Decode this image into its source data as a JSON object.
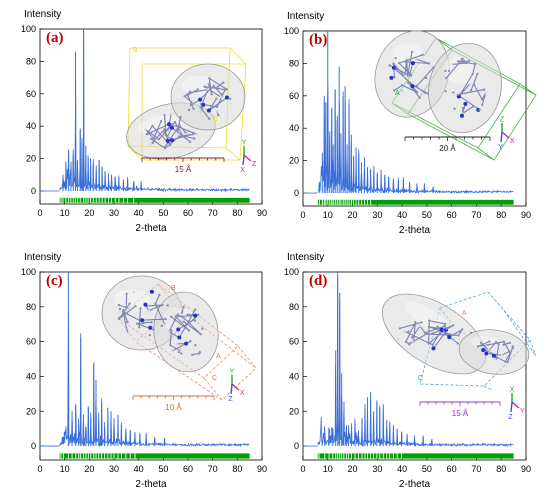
{
  "figure": {
    "panels": [
      {
        "panel_label": "(a)",
        "scale_text": "15 Å",
        "scale_color": "#8b1a1a",
        "cell_color": "#e6d800",
        "cell_labels": [
          "B",
          "C"
        ],
        "axes_labels": [
          "Y",
          "Z",
          "X"
        ]
      },
      {
        "panel_label": "(b)",
        "scale_text": "20 Å",
        "scale_color": "#222222",
        "cell_color": "#2aa52a",
        "cell_labels": [
          "A"
        ],
        "axes_labels": [
          "Z",
          "X",
          "Y"
        ]
      },
      {
        "panel_label": "(c)",
        "scale_text": "10 Å",
        "scale_color": "#e07020",
        "cell_color": "#f07040",
        "cell_labels": [
          "B",
          "A",
          "C"
        ],
        "axes_labels": [
          "Y",
          "X",
          "Z"
        ]
      },
      {
        "panel_label": "(d)",
        "scale_text": "15 Å",
        "scale_color": "#9932cc",
        "cell_color": "#3399dd",
        "cell_labels": [
          "A",
          "C"
        ],
        "axes_labels": [
          "X",
          "Y",
          "Z"
        ]
      }
    ]
  },
  "colors": {
    "pattern_line": "#3a6fd8",
    "tick_bar": "#00a000",
    "ellipsoid_fill": "#d8d8d8",
    "ellipsoid_stroke": "#9a9a9a",
    "panel_label": "#c00000"
  },
  "chart_data": [
    {
      "type": "line",
      "title": "",
      "xlabel": "2-theta",
      "ylabel": "Intensity",
      "xlim": [
        0,
        90
      ],
      "ylim": [
        -8,
        100
      ],
      "xticks": [
        0,
        10,
        20,
        30,
        40,
        50,
        60,
        70,
        80,
        90
      ],
      "yticks": [
        0,
        20,
        40,
        60,
        80,
        100
      ],
      "x_start": 8,
      "x_end": 85,
      "peaks": [
        {
          "x": 9.3,
          "y": 10
        },
        {
          "x": 10.5,
          "y": 18
        },
        {
          "x": 11.6,
          "y": 24
        },
        {
          "x": 12.5,
          "y": 13
        },
        {
          "x": 13.5,
          "y": 22
        },
        {
          "x": 14.4,
          "y": 86
        },
        {
          "x": 15.2,
          "y": 19
        },
        {
          "x": 16.3,
          "y": 38
        },
        {
          "x": 17.0,
          "y": 30
        },
        {
          "x": 17.7,
          "y": 100
        },
        {
          "x": 18.6,
          "y": 28
        },
        {
          "x": 19.5,
          "y": 22
        },
        {
          "x": 20.5,
          "y": 20
        },
        {
          "x": 21.6,
          "y": 17
        },
        {
          "x": 22.8,
          "y": 13
        },
        {
          "x": 24.0,
          "y": 19
        },
        {
          "x": 25.2,
          "y": 15
        },
        {
          "x": 26.4,
          "y": 12
        },
        {
          "x": 27.8,
          "y": 11
        },
        {
          "x": 29.0,
          "y": 10
        },
        {
          "x": 30.5,
          "y": 9
        },
        {
          "x": 32.0,
          "y": 8
        },
        {
          "x": 33.8,
          "y": 7
        },
        {
          "x": 35.5,
          "y": 7
        },
        {
          "x": 38.0,
          "y": 6
        },
        {
          "x": 41.0,
          "y": 5
        }
      ],
      "tick_marks": [
        8.5,
        9.3,
        10.5,
        11.6,
        12.5,
        13.5,
        14.4,
        15.2,
        16.3,
        17.7,
        18.6,
        19.5,
        20.5,
        21.6,
        22.8,
        24.0,
        25.2,
        26.4,
        27.8,
        29.0,
        30.5,
        32.0,
        33.8,
        35.5,
        38.0
      ]
    },
    {
      "type": "line",
      "title": "",
      "xlabel": "2-theta",
      "ylabel": "Intensity",
      "xlim": [
        0,
        90
      ],
      "ylim": [
        -8,
        100
      ],
      "xticks": [
        0,
        10,
        20,
        30,
        40,
        50,
        60,
        70,
        80,
        90
      ],
      "yticks": [
        0,
        20,
        40,
        60,
        80,
        100
      ],
      "x_start": 6,
      "x_end": 85,
      "peaks": [
        {
          "x": 6.6,
          "y": 7
        },
        {
          "x": 7.8,
          "y": 25
        },
        {
          "x": 8.6,
          "y": 60
        },
        {
          "x": 9.2,
          "y": 56
        },
        {
          "x": 10.0,
          "y": 100
        },
        {
          "x": 10.8,
          "y": 38
        },
        {
          "x": 11.6,
          "y": 52
        },
        {
          "x": 12.2,
          "y": 30
        },
        {
          "x": 13.0,
          "y": 64
        },
        {
          "x": 13.8,
          "y": 45
        },
        {
          "x": 14.6,
          "y": 78
        },
        {
          "x": 15.3,
          "y": 37
        },
        {
          "x": 16.2,
          "y": 60
        },
        {
          "x": 17.0,
          "y": 66
        },
        {
          "x": 17.8,
          "y": 30
        },
        {
          "x": 18.6,
          "y": 55
        },
        {
          "x": 19.5,
          "y": 36
        },
        {
          "x": 20.4,
          "y": 23
        },
        {
          "x": 21.4,
          "y": 28
        },
        {
          "x": 22.5,
          "y": 24
        },
        {
          "x": 23.6,
          "y": 19
        },
        {
          "x": 24.8,
          "y": 22
        },
        {
          "x": 26.0,
          "y": 16
        },
        {
          "x": 27.3,
          "y": 15
        },
        {
          "x": 28.6,
          "y": 14
        },
        {
          "x": 30.0,
          "y": 12
        },
        {
          "x": 31.5,
          "y": 12
        },
        {
          "x": 33.0,
          "y": 11
        },
        {
          "x": 34.6,
          "y": 10
        },
        {
          "x": 36.5,
          "y": 9
        },
        {
          "x": 38.5,
          "y": 8
        },
        {
          "x": 40.5,
          "y": 8
        },
        {
          "x": 43.0,
          "y": 7
        },
        {
          "x": 46.0,
          "y": 6
        },
        {
          "x": 49.0,
          "y": 5
        },
        {
          "x": 52.5,
          "y": 4
        }
      ],
      "tick_marks": [
        6.6,
        7.8,
        8.6,
        9.2,
        10.0,
        10.8,
        11.6,
        12.2,
        13.0,
        13.8,
        14.6,
        15.3,
        16.2,
        17.0,
        17.8,
        18.6,
        19.5,
        20.4,
        21.4,
        22.5,
        23.6,
        24.8,
        26.0,
        27.3
      ]
    },
    {
      "type": "line",
      "title": "",
      "xlabel": "2-theta",
      "ylabel": "Intensity",
      "xlim": [
        0,
        90
      ],
      "ylim": [
        -8,
        100
      ],
      "xticks": [
        0,
        10,
        20,
        30,
        40,
        50,
        60,
        70,
        80,
        90
      ],
      "yticks": [
        0,
        20,
        40,
        60,
        80,
        100
      ],
      "x_start": 8,
      "x_end": 85,
      "peaks": [
        {
          "x": 11.5,
          "y": 100
        },
        {
          "x": 13.0,
          "y": 20
        },
        {
          "x": 14.5,
          "y": 24
        },
        {
          "x": 15.7,
          "y": 12
        },
        {
          "x": 16.5,
          "y": 62
        },
        {
          "x": 17.6,
          "y": 18
        },
        {
          "x": 18.6,
          "y": 9
        },
        {
          "x": 19.6,
          "y": 22
        },
        {
          "x": 20.6,
          "y": 16
        },
        {
          "x": 21.8,
          "y": 48
        },
        {
          "x": 22.7,
          "y": 38
        },
        {
          "x": 23.8,
          "y": 15
        },
        {
          "x": 25.0,
          "y": 25
        },
        {
          "x": 26.2,
          "y": 11
        },
        {
          "x": 27.5,
          "y": 22
        },
        {
          "x": 28.8,
          "y": 20
        },
        {
          "x": 30.0,
          "y": 16
        },
        {
          "x": 31.6,
          "y": 18
        },
        {
          "x": 33.0,
          "y": 12
        },
        {
          "x": 34.8,
          "y": 10
        },
        {
          "x": 36.6,
          "y": 9
        },
        {
          "x": 38.5,
          "y": 8
        },
        {
          "x": 40.5,
          "y": 7
        },
        {
          "x": 43.0,
          "y": 6
        },
        {
          "x": 46.5,
          "y": 5
        },
        {
          "x": 50.5,
          "y": 4
        }
      ],
      "tick_marks": [
        8.5,
        9.5,
        11.5,
        13.0,
        14.5,
        15.7,
        16.5,
        17.6,
        18.6,
        19.6,
        20.6,
        21.8,
        22.7,
        23.8,
        25.0,
        26.2,
        27.5,
        28.8,
        30.0,
        31.6,
        33.0,
        34.8,
        36.6,
        38.5
      ]
    },
    {
      "type": "line",
      "title": "",
      "xlabel": "2-theta",
      "ylabel": "Intensity",
      "xlim": [
        0,
        90
      ],
      "ylim": [
        -8,
        100
      ],
      "xticks": [
        0,
        10,
        20,
        30,
        40,
        50,
        60,
        70,
        80,
        90
      ],
      "yticks": [
        0,
        20,
        40,
        60,
        80,
        100
      ],
      "x_start": 6,
      "x_end": 85,
      "peaks": [
        {
          "x": 8.8,
          "y": 5
        },
        {
          "x": 10.5,
          "y": 6
        },
        {
          "x": 12.0,
          "y": 8
        },
        {
          "x": 13.2,
          "y": 55
        },
        {
          "x": 14.0,
          "y": 98
        },
        {
          "x": 14.8,
          "y": 88
        },
        {
          "x": 15.6,
          "y": 42
        },
        {
          "x": 16.5,
          "y": 18
        },
        {
          "x": 17.5,
          "y": 10
        },
        {
          "x": 18.4,
          "y": 8
        },
        {
          "x": 19.6,
          "y": 9
        },
        {
          "x": 21.0,
          "y": 13
        },
        {
          "x": 22.4,
          "y": 9
        },
        {
          "x": 23.8,
          "y": 16
        },
        {
          "x": 25.0,
          "y": 22
        },
        {
          "x": 26.0,
          "y": 28
        },
        {
          "x": 27.3,
          "y": 31
        },
        {
          "x": 28.5,
          "y": 20
        },
        {
          "x": 29.8,
          "y": 25
        },
        {
          "x": 31.0,
          "y": 22
        },
        {
          "x": 32.4,
          "y": 24
        },
        {
          "x": 33.8,
          "y": 15
        },
        {
          "x": 35.0,
          "y": 14
        },
        {
          "x": 36.5,
          "y": 12
        },
        {
          "x": 38.0,
          "y": 10
        },
        {
          "x": 39.8,
          "y": 8
        },
        {
          "x": 42.0,
          "y": 7
        },
        {
          "x": 45.0,
          "y": 6
        },
        {
          "x": 48.5,
          "y": 5
        },
        {
          "x": 52.0,
          "y": 4
        }
      ],
      "tick_marks": [
        6.5,
        8.8,
        10.5,
        12.0,
        13.2,
        14.0,
        14.8,
        15.6,
        16.5,
        17.5,
        18.4,
        19.6,
        21.0,
        22.4,
        23.8,
        25.0,
        26.0,
        27.3,
        28.5,
        29.8,
        31.0,
        32.4,
        33.8,
        35.0,
        36.5,
        38.0,
        39.8
      ]
    }
  ]
}
